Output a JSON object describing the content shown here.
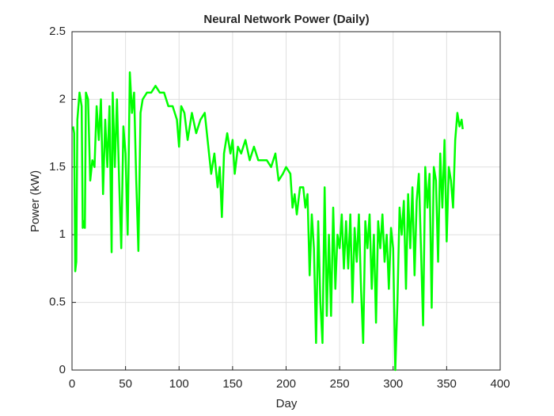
{
  "chart_data": {
    "type": "line",
    "title": "Neural Network Power (Daily)",
    "x_label": "Day",
    "y_label": "Power (kW)",
    "x": [
      1,
      2,
      3,
      4,
      5,
      7,
      9,
      10,
      11,
      12,
      13,
      15,
      17,
      19,
      21,
      23,
      25,
      27,
      29,
      31,
      33,
      35,
      37,
      38,
      40,
      42,
      44,
      46,
      48,
      50,
      52,
      54,
      56,
      58,
      60,
      62,
      64,
      66,
      70,
      74,
      78,
      82,
      86,
      90,
      94,
      98,
      100,
      102,
      105,
      108,
      112,
      116,
      120,
      124,
      128,
      130,
      133,
      136,
      138,
      140,
      142,
      145,
      148,
      150,
      152,
      155,
      158,
      162,
      166,
      170,
      174,
      178,
      182,
      186,
      190,
      193,
      197,
      200,
      204,
      206,
      208,
      210,
      213,
      216,
      218,
      220,
      222,
      224,
      226,
      228,
      230,
      232,
      234,
      236,
      238,
      240,
      242,
      244,
      246,
      248,
      250,
      252,
      254,
      256,
      258,
      260,
      262,
      264,
      266,
      268,
      270,
      272,
      274,
      276,
      278,
      280,
      282,
      284,
      286,
      288,
      290,
      292,
      294,
      296,
      298,
      300,
      302,
      304,
      306,
      308,
      310,
      312,
      314,
      316,
      318,
      320,
      322,
      324,
      326,
      328,
      330,
      332,
      334,
      336,
      338,
      340,
      342,
      344,
      346,
      348,
      350,
      352,
      354,
      356,
      358,
      360,
      362,
      364,
      365
    ],
    "series": [
      {
        "name": "Power",
        "color": "#00ff00",
        "values": [
          1.8,
          1.75,
          0.73,
          0.8,
          1.85,
          2.05,
          1.95,
          1.05,
          1.1,
          1.05,
          2.05,
          2.0,
          1.4,
          1.55,
          1.5,
          1.95,
          1.7,
          2.0,
          1.3,
          1.85,
          1.5,
          1.95,
          0.87,
          2.05,
          1.5,
          2.0,
          1.4,
          0.9,
          1.8,
          1.6,
          1.0,
          2.2,
          1.9,
          2.05,
          1.4,
          0.88,
          1.9,
          2.0,
          2.05,
          2.05,
          2.1,
          2.05,
          2.05,
          1.95,
          1.95,
          1.85,
          1.65,
          1.95,
          1.9,
          1.7,
          1.9,
          1.75,
          1.85,
          1.9,
          1.6,
          1.45,
          1.6,
          1.35,
          1.5,
          1.13,
          1.6,
          1.75,
          1.6,
          1.7,
          1.45,
          1.65,
          1.6,
          1.7,
          1.55,
          1.65,
          1.55,
          1.55,
          1.55,
          1.5,
          1.6,
          1.4,
          1.45,
          1.5,
          1.45,
          1.2,
          1.3,
          1.15,
          1.35,
          1.35,
          1.2,
          1.3,
          0.7,
          1.15,
          0.9,
          0.2,
          1.1,
          0.5,
          0.2,
          1.35,
          0.4,
          1.0,
          0.4,
          1.2,
          0.6,
          1.0,
          0.9,
          1.15,
          0.75,
          1.1,
          0.75,
          1.15,
          0.5,
          1.05,
          0.8,
          1.15,
          0.6,
          0.2,
          1.1,
          0.9,
          1.15,
          0.6,
          1.0,
          0.35,
          1.1,
          0.9,
          1.15,
          0.8,
          1.0,
          0.6,
          1.05,
          0.9,
          0.0,
          0.5,
          1.2,
          1.0,
          1.25,
          0.6,
          1.3,
          0.9,
          1.35,
          0.7,
          1.25,
          1.45,
          0.9,
          0.33,
          1.5,
          1.2,
          1.45,
          0.46,
          1.5,
          1.4,
          0.8,
          1.6,
          1.2,
          1.7,
          0.95,
          1.5,
          1.4,
          1.2,
          1.7,
          1.9,
          1.8,
          1.85,
          1.78
        ]
      }
    ],
    "xlim": [
      0,
      400
    ],
    "xticks": [
      0,
      50,
      100,
      150,
      200,
      250,
      300,
      350,
      400
    ],
    "ylim": [
      0,
      2.5
    ],
    "yticks": [
      0,
      0.5,
      1,
      1.5,
      2,
      2.5
    ],
    "grid": true
  }
}
